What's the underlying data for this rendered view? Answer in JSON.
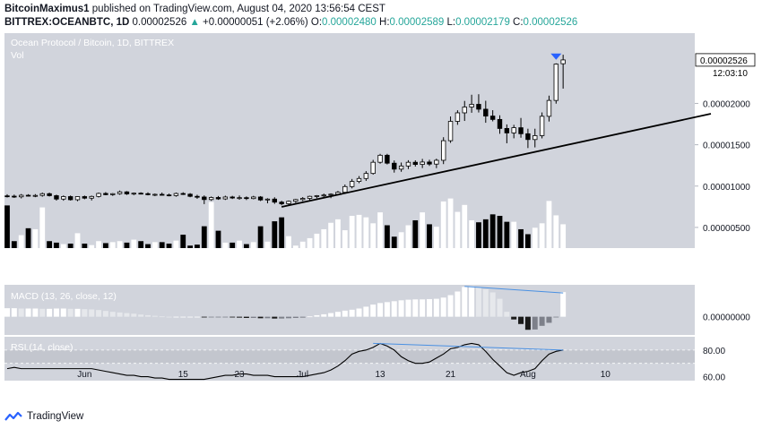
{
  "header": {
    "author": "BitcoinMaximus1",
    "published": "published on TradingView.com, August 04, 2020 13:56:54 CEST",
    "symbol": "BITTREX:OCEANBTC, 1D",
    "last": "0.00002526",
    "change_arrow": "▲",
    "change": "+0.00000051 (+2.06%)",
    "o_label": "O:",
    "o": "0.00002480",
    "h_label": "H:",
    "h": "0.00002589",
    "l_label": "L:",
    "l": "0.00002179",
    "c_label": "C:",
    "c": "0.00002526"
  },
  "colors": {
    "panel_bg": "#d1d4dc",
    "rsi_band": "#c3c6ce",
    "up_body": "#ffffff",
    "down_body": "#000000",
    "trendline": "#000000",
    "divergence": "#4a90e2",
    "signal_arrow": "#2962ff",
    "up_change": "#26a69a"
  },
  "footer": {
    "brand": "TradingView",
    "logo_icon": "tradingview-logo-icon"
  },
  "chart_data": [
    {
      "type": "candlestick",
      "title": "Ocean Protocol / Bitcoin, 1D, BITTREX",
      "subtitle": "Vol",
      "y_ticks": [
        "0.00002000",
        "0.00001500",
        "0.00001000",
        "0.00000500"
      ],
      "ylim": [
        2.5e-06,
        2.85e-05
      ],
      "last_price_label": "0.00002526",
      "countdown_label": "12:03:10",
      "x_ticks": [
        "Jun",
        "15",
        "23",
        "Jul",
        "13",
        "21",
        "Aug",
        "10"
      ],
      "candles": [
        {
          "o": 8.82e-06,
          "h": 9.02e-06,
          "l": 8.62e-06,
          "c": 8.78e-06
        },
        {
          "o": 8.78e-06,
          "h": 8.97e-06,
          "l": 8.57e-06,
          "c": 8.7e-06
        },
        {
          "o": 8.7e-06,
          "h": 9.04e-06,
          "l": 8.51e-06,
          "c": 8.89e-06
        },
        {
          "o": 8.89e-06,
          "h": 9.02e-06,
          "l": 8.73e-06,
          "c": 8.83e-06
        },
        {
          "o": 8.83e-06,
          "h": 9.03e-06,
          "l": 8.66e-06,
          "c": 8.87e-06
        },
        {
          "o": 8.87e-06,
          "h": 9.22e-06,
          "l": 8.72e-06,
          "c": 9.08e-06
        },
        {
          "o": 9.08e-06,
          "h": 9.21e-06,
          "l": 8.74e-06,
          "c": 8.84e-06
        },
        {
          "o": 8.84e-06,
          "h": 8.96e-06,
          "l": 8.24e-06,
          "c": 8.43e-06
        },
        {
          "o": 8.43e-06,
          "h": 8.87e-06,
          "l": 8.23e-06,
          "c": 8.73e-06
        },
        {
          "o": 8.73e-06,
          "h": 8.86e-06,
          "l": 8.25e-06,
          "c": 8.35e-06
        },
        {
          "o": 8.35e-06,
          "h": 8.79e-06,
          "l": 8.17e-06,
          "c": 8.73e-06
        },
        {
          "o": 8.73e-06,
          "h": 8.85e-06,
          "l": 8.41e-06,
          "c": 8.54e-06
        },
        {
          "o": 8.54e-06,
          "h": 8.85e-06,
          "l": 8.26e-06,
          "c": 8.75e-06
        },
        {
          "o": 8.75e-06,
          "h": 9.22e-06,
          "l": 8.62e-06,
          "c": 9.11e-06
        },
        {
          "o": 9.11e-06,
          "h": 9.27e-06,
          "l": 8.89e-06,
          "c": 8.96e-06
        },
        {
          "o": 8.96e-06,
          "h": 9.15e-06,
          "l": 8.82e-06,
          "c": 9.08e-06
        },
        {
          "o": 9.08e-06,
          "h": 9.46e-06,
          "l": 8.95e-06,
          "c": 9.3e-06
        },
        {
          "o": 9.3e-06,
          "h": 9.39e-06,
          "l": 8.93e-06,
          "c": 9.05e-06
        },
        {
          "o": 9.05e-06,
          "h": 9.22e-06,
          "l": 8.89e-06,
          "c": 9.14e-06
        },
        {
          "o": 9.14e-06,
          "h": 9.25e-06,
          "l": 8.99e-06,
          "c": 9.08e-06
        },
        {
          "o": 9.08e-06,
          "h": 9.24e-06,
          "l": 8.88e-06,
          "c": 8.96e-06
        },
        {
          "o": 8.96e-06,
          "h": 9.1e-06,
          "l": 8.78e-06,
          "c": 9e-06
        },
        {
          "o": 9e-06,
          "h": 9.22e-06,
          "l": 8.85e-06,
          "c": 8.93e-06
        },
        {
          "o": 8.93e-06,
          "h": 9.09e-06,
          "l": 8.76e-06,
          "c": 8.85e-06
        },
        {
          "o": 8.85e-06,
          "h": 9.22e-06,
          "l": 8.72e-06,
          "c": 9.1e-06
        },
        {
          "o": 9.1e-06,
          "h": 9.25e-06,
          "l": 8.92e-06,
          "c": 9.02e-06
        },
        {
          "o": 9.02e-06,
          "h": 9.15e-06,
          "l": 8.65e-06,
          "c": 8.76e-06
        },
        {
          "o": 8.76e-06,
          "h": 8.95e-06,
          "l": 8.46e-06,
          "c": 8.68e-06
        },
        {
          "o": 8.68e-06,
          "h": 8.87e-06,
          "l": 7.82e-06,
          "c": 8.37e-06
        },
        {
          "o": 8.37e-06,
          "h": 8.74e-06,
          "l": 8.21e-06,
          "c": 8.62e-06
        },
        {
          "o": 8.62e-06,
          "h": 8.8e-06,
          "l": 8.34e-06,
          "c": 8.45e-06
        },
        {
          "o": 8.45e-06,
          "h": 8.84e-06,
          "l": 8.32e-06,
          "c": 8.68e-06
        },
        {
          "o": 8.68e-06,
          "h": 8.82e-06,
          "l": 8.44e-06,
          "c": 8.56e-06
        },
        {
          "o": 8.56e-06,
          "h": 8.86e-06,
          "l": 8.35e-06,
          "c": 8.6e-06
        },
        {
          "o": 8.6e-06,
          "h": 8.75e-06,
          "l": 8.31e-06,
          "c": 8.49e-06
        },
        {
          "o": 8.49e-06,
          "h": 8.82e-06,
          "l": 8.4e-06,
          "c": 8.68e-06
        },
        {
          "o": 8.68e-06,
          "h": 8.79e-06,
          "l": 8.19e-06,
          "c": 8.32e-06
        },
        {
          "o": 8.32e-06,
          "h": 8.53e-06,
          "l": 7.92e-06,
          "c": 8.43e-06
        },
        {
          "o": 8.43e-06,
          "h": 8.65e-06,
          "l": 7.85e-06,
          "c": 8.06e-06
        },
        {
          "o": 8.06e-06,
          "h": 8.22e-06,
          "l": 7.68e-06,
          "c": 7.86e-06
        },
        {
          "o": 7.86e-06,
          "h": 8.26e-06,
          "l": 7.75e-06,
          "c": 8.16e-06
        },
        {
          "o": 8.16e-06,
          "h": 8.45e-06,
          "l": 7.97e-06,
          "c": 8.37e-06
        },
        {
          "o": 8.37e-06,
          "h": 8.67e-06,
          "l": 8.19e-06,
          "c": 8.51e-06
        },
        {
          "o": 8.51e-06,
          "h": 8.83e-06,
          "l": 8.31e-06,
          "c": 8.76e-06
        },
        {
          "o": 8.76e-06,
          "h": 8.91e-06,
          "l": 8.53e-06,
          "c": 8.84e-06
        },
        {
          "o": 8.84e-06,
          "h": 9.09e-06,
          "l": 8.54e-06,
          "c": 8.92e-06
        },
        {
          "o": 8.92e-06,
          "h": 9.12e-06,
          "l": 8.54e-06,
          "c": 9.02e-06
        },
        {
          "o": 9.02e-06,
          "h": 9.41e-06,
          "l": 8.88e-06,
          "c": 9.25e-06
        },
        {
          "o": 9.25e-06,
          "h": 1.019e-05,
          "l": 9.05e-06,
          "c": 9.94e-06
        },
        {
          "o": 9.94e-06,
          "h": 1.086e-05,
          "l": 9.72e-06,
          "c": 1.056e-05
        },
        {
          "o": 1.056e-05,
          "h": 1.121e-05,
          "l": 1.035e-05,
          "c": 1.092e-05
        },
        {
          "o": 1.092e-05,
          "h": 1.181e-05,
          "l": 1.063e-05,
          "c": 1.153e-05
        },
        {
          "o": 1.153e-05,
          "h": 1.317e-05,
          "l": 1.138e-05,
          "c": 1.288e-05
        },
        {
          "o": 1.288e-05,
          "h": 1.39e-05,
          "l": 1.271e-05,
          "c": 1.373e-05
        },
        {
          "o": 1.373e-05,
          "h": 1.39e-05,
          "l": 1.262e-05,
          "c": 1.277e-05
        },
        {
          "o": 1.277e-05,
          "h": 1.31e-05,
          "l": 1.163e-05,
          "c": 1.205e-05
        },
        {
          "o": 1.205e-05,
          "h": 1.285e-05,
          "l": 1.173e-05,
          "c": 1.243e-05
        },
        {
          "o": 1.243e-05,
          "h": 1.313e-05,
          "l": 1.206e-05,
          "c": 1.288e-05
        },
        {
          "o": 1.288e-05,
          "h": 1.312e-05,
          "l": 1.236e-05,
          "c": 1.262e-05
        },
        {
          "o": 1.262e-05,
          "h": 1.329e-05,
          "l": 1.218e-05,
          "c": 1.291e-05
        },
        {
          "o": 1.291e-05,
          "h": 1.319e-05,
          "l": 1.244e-05,
          "c": 1.266e-05
        },
        {
          "o": 1.266e-05,
          "h": 1.331e-05,
          "l": 1.217e-05,
          "c": 1.312e-05
        },
        {
          "o": 1.312e-05,
          "h": 1.591e-05,
          "l": 1.266e-05,
          "c": 1.549e-05
        },
        {
          "o": 1.549e-05,
          "h": 1.842e-05,
          "l": 1.523e-05,
          "c": 1.783e-05
        },
        {
          "o": 1.783e-05,
          "h": 1.917e-05,
          "l": 1.741e-05,
          "c": 1.886e-05
        },
        {
          "o": 1.886e-05,
          "h": 2.03e-05,
          "l": 1.788e-05,
          "c": 1.956e-05
        },
        {
          "o": 1.956e-05,
          "h": 2.105e-05,
          "l": 1.887e-05,
          "c": 1.989e-05
        },
        {
          "o": 1.989e-05,
          "h": 2.111e-05,
          "l": 1.89e-05,
          "c": 1.93e-05
        },
        {
          "o": 1.93e-05,
          "h": 2.032e-05,
          "l": 1.766e-05,
          "c": 1.847e-05
        },
        {
          "o": 1.847e-05,
          "h": 1.918e-05,
          "l": 1.783e-05,
          "c": 1.806e-05
        },
        {
          "o": 1.806e-05,
          "h": 1.856e-05,
          "l": 1.633e-05,
          "c": 1.697e-05
        },
        {
          "o": 1.697e-05,
          "h": 1.746e-05,
          "l": 1.518e-05,
          "c": 1.643e-05
        },
        {
          "o": 1.643e-05,
          "h": 1.741e-05,
          "l": 1.578e-05,
          "c": 1.706e-05
        },
        {
          "o": 1.706e-05,
          "h": 1.824e-05,
          "l": 1.585e-05,
          "c": 1.633e-05
        },
        {
          "o": 1.633e-05,
          "h": 1.694e-05,
          "l": 1.46e-05,
          "c": 1.563e-05
        },
        {
          "o": 1.563e-05,
          "h": 1.694e-05,
          "l": 1.468e-05,
          "c": 1.61e-05
        },
        {
          "o": 1.61e-05,
          "h": 1.891e-05,
          "l": 1.577e-05,
          "c": 1.844e-05
        },
        {
          "o": 1.844e-05,
          "h": 2.094e-05,
          "l": 1.781e-05,
          "c": 2.036e-05
        },
        {
          "o": 2.036e-05,
          "h": 2.484e-05,
          "l": 1.997e-05,
          "c": 2.475e-05
        },
        {
          "o": 2.48e-05,
          "h": 2.589e-05,
          "l": 2.179e-05,
          "c": 2.526e-05
        }
      ],
      "volume": [
        0.86,
        0.14,
        0.26,
        0.4,
        0.38,
        0.82,
        0.14,
        0.11,
        0.08,
        0.09,
        0.3,
        0.09,
        0.06,
        0.14,
        0.1,
        0.12,
        0.14,
        0.11,
        0.17,
        0.14,
        0.08,
        0.12,
        0.12,
        0.09,
        0.15,
        0.27,
        0.05,
        0.07,
        0.44,
        0.93,
        0.35,
        0.11,
        0.11,
        0.15,
        0.08,
        0.12,
        0.44,
        0.13,
        0.54,
        0.62,
        0.24,
        0.05,
        0.13,
        0.2,
        0.29,
        0.38,
        0.51,
        0.58,
        0.36,
        0.65,
        0.67,
        0.62,
        0.5,
        0.72,
        0.46,
        0.23,
        0.32,
        0.46,
        0.56,
        0.72,
        0.48,
        0.43,
        0.94,
        1.0,
        0.73,
        0.87,
        0.56,
        0.52,
        0.58,
        0.68,
        0.65,
        0.53,
        0.53,
        0.38,
        0.28,
        0.41,
        0.5,
        0.95,
        0.66,
        0.48
      ],
      "volume_scale": 8.5e-06,
      "trendline": {
        "from_index": 39,
        "from_price": 7.48e-06,
        "to_index": 100,
        "to_price": 1.875e-05
      },
      "signal_arrow": {
        "index": 78,
        "direction": "down"
      }
    },
    {
      "type": "histogram",
      "title": "MACD (13, 26, close, 12)",
      "y_ticks": [
        "0.00000000"
      ],
      "values": [
        0.28,
        0.28,
        0.27,
        0.27,
        0.27,
        0.26,
        0.26,
        0.27,
        0.27,
        0.26,
        0.26,
        0.25,
        0.24,
        0.22,
        0.19,
        0.16,
        0.14,
        0.12,
        0.1,
        0.07,
        0.05,
        0.03,
        0.01,
        0.0,
        0.0,
        0.0,
        0.0,
        0.0,
        -0.01,
        -0.01,
        -0.01,
        -0.01,
        -0.02,
        -0.03,
        -0.04,
        -0.04,
        -0.05,
        -0.05,
        -0.06,
        -0.06,
        -0.05,
        -0.04,
        -0.03,
        0.01,
        0.05,
        0.08,
        0.12,
        0.16,
        0.2,
        0.23,
        0.27,
        0.33,
        0.4,
        0.45,
        0.48,
        0.51,
        0.54,
        0.56,
        0.57,
        0.57,
        0.58,
        0.59,
        0.63,
        0.71,
        0.83,
        0.98,
        1.0,
        0.97,
        0.9,
        0.8,
        0.59,
        0.16,
        -0.09,
        -0.24,
        -0.43,
        -0.42,
        -0.3,
        -0.2,
        -0.02,
        0.81
      ],
      "ylim": [
        -0.6,
        1.05
      ],
      "divergence": {
        "from_index": 65,
        "from_value": 1.0,
        "to_index": 79,
        "to_value": 0.78
      }
    },
    {
      "type": "line",
      "title": "RSI (14, close)",
      "y_ticks": [
        "80.00",
        "60.00"
      ],
      "ylim": [
        57,
        90
      ],
      "band": [
        70,
        80
      ],
      "values": [
        66,
        67,
        66,
        66,
        66,
        66,
        66,
        66,
        66,
        66,
        66,
        66,
        66,
        65,
        64,
        63,
        62,
        61,
        61,
        60,
        60,
        59,
        59,
        58,
        58,
        58,
        58,
        58,
        58,
        59,
        60,
        61,
        61,
        62,
        62,
        61,
        61,
        61,
        60,
        60,
        60,
        60,
        60,
        61,
        62,
        63,
        65,
        68,
        72,
        77,
        79,
        80,
        82,
        85,
        83,
        80,
        75,
        72,
        70,
        70,
        71,
        74,
        77,
        81,
        82,
        84,
        85,
        84,
        79,
        73,
        68,
        63,
        61,
        63,
        64,
        66,
        72,
        77,
        79,
        80
      ],
      "divergence": {
        "from_index": 52,
        "from_value": 85,
        "to_index": 79,
        "to_value": 80
      }
    }
  ]
}
